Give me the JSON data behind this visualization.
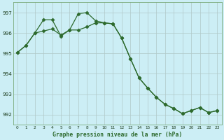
{
  "line1_x": [
    0,
    1,
    2,
    3,
    4,
    5,
    6,
    7,
    8,
    9,
    10,
    11,
    12,
    13,
    14,
    15,
    16,
    17,
    18,
    19,
    20,
    21,
    22,
    23
  ],
  "line1_y": [
    995.05,
    995.4,
    996.0,
    996.65,
    996.65,
    995.85,
    996.15,
    996.95,
    997.0,
    996.6,
    996.5,
    996.45,
    995.75,
    994.75,
    993.8,
    993.3,
    992.85,
    992.5,
    992.3,
    992.05,
    992.2,
    992.35,
    992.1,
    992.2
  ],
  "line2_x": [
    0,
    1,
    2,
    3,
    4,
    5,
    6,
    7,
    8,
    9,
    10,
    11,
    12,
    13,
    14,
    15,
    16,
    17,
    18,
    19,
    20,
    21,
    22,
    23
  ],
  "line2_y": [
    995.05,
    995.4,
    996.0,
    996.1,
    996.2,
    995.9,
    996.15,
    996.15,
    996.3,
    996.5,
    996.5,
    996.45,
    995.75,
    994.75,
    993.8,
    993.3,
    992.85,
    992.5,
    992.3,
    992.05,
    992.2,
    992.35,
    992.1,
    992.2
  ],
  "line_color": "#2d6a2d",
  "bg_color": "#cceef5",
  "grid_color": "#b0c8c8",
  "xlabel": "Graphe pression niveau de la mer (hPa)",
  "xlim": [
    -0.5,
    23.5
  ],
  "ylim": [
    991.5,
    997.5
  ],
  "yticks": [
    992,
    993,
    994,
    995,
    996,
    997
  ],
  "xticks": [
    0,
    1,
    2,
    3,
    4,
    5,
    6,
    7,
    8,
    9,
    10,
    11,
    12,
    13,
    14,
    15,
    16,
    17,
    18,
    19,
    20,
    21,
    22,
    23
  ],
  "figsize": [
    3.2,
    2.0
  ],
  "dpi": 100
}
